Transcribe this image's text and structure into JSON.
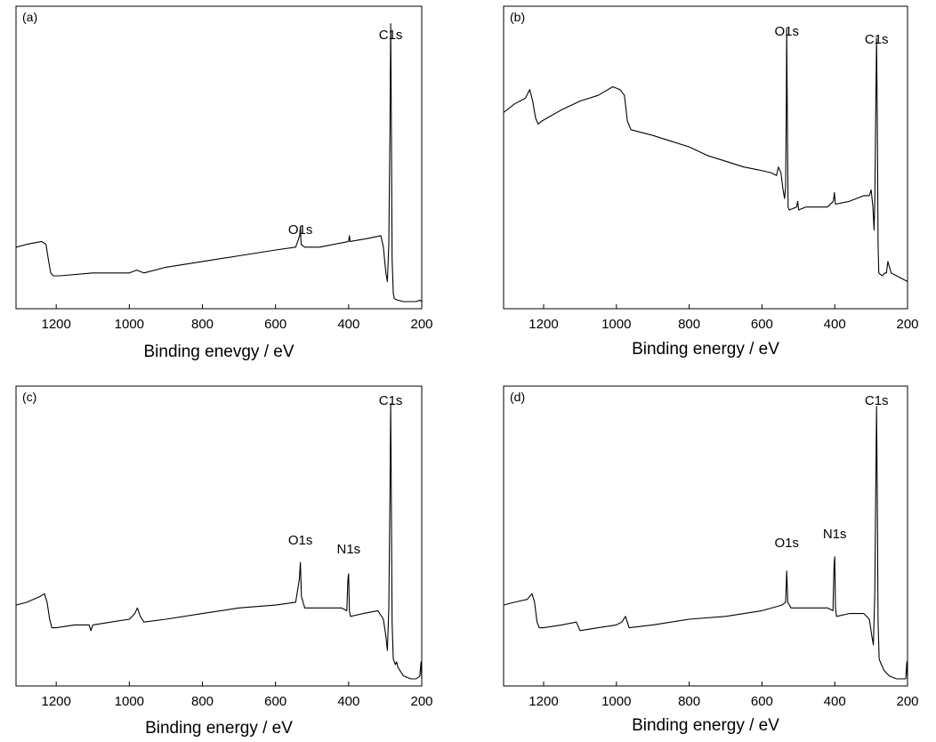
{
  "chart_data": [
    {
      "type": "line",
      "panel_label": "(a)",
      "xlabel": "Binding enevgy / eV",
      "ylabel": "",
      "xlim": [
        1310,
        200
      ],
      "x_reversed": true,
      "y_ticks_shown": false,
      "xticks": [
        1200,
        1000,
        800,
        600,
        400,
        200
      ],
      "annotations": [
        {
          "text": "C1s",
          "x": 285
        },
        {
          "text": "O1s",
          "x": 532
        }
      ],
      "series": [
        {
          "x": [
            1310,
            1280,
            1240,
            1228,
            1222,
            1215,
            1208,
            1190,
            1100,
            1000,
            980,
            960,
            900,
            800,
            700,
            600,
            545,
            534,
            532,
            530,
            520,
            480,
            400,
            398,
            396,
            350,
            312,
            305,
            298,
            294,
            290,
            287,
            285,
            283,
            281,
            278,
            275,
            265,
            250,
            230,
            215,
            205,
            200
          ],
          "y": [
            0.19,
            0.2,
            0.21,
            0.2,
            0.15,
            0.1,
            0.09,
            0.09,
            0.1,
            0.1,
            0.11,
            0.1,
            0.12,
            0.14,
            0.16,
            0.18,
            0.19,
            0.23,
            0.26,
            0.2,
            0.19,
            0.19,
            0.21,
            0.23,
            0.21,
            0.22,
            0.23,
            0.19,
            0.1,
            0.07,
            0.2,
            0.6,
            0.97,
            0.6,
            0.15,
            0.03,
            0.01,
            0.005,
            0.0,
            0.0,
            0.0,
            0.005,
            0.0
          ]
        }
      ]
    },
    {
      "type": "line",
      "panel_label": "(b)",
      "xlabel": "Binding energy / eV",
      "ylabel": "",
      "xlim": [
        1310,
        200
      ],
      "x_reversed": true,
      "y_ticks_shown": false,
      "xticks": [
        1200,
        1000,
        800,
        600,
        400,
        200
      ],
      "annotations": [
        {
          "text": "O1s",
          "x": 532
        },
        {
          "text": "C1s",
          "x": 285
        }
      ],
      "series": [
        {
          "x": [
            1310,
            1280,
            1250,
            1238,
            1230,
            1222,
            1215,
            1205,
            1150,
            1100,
            1050,
            1010,
            990,
            978,
            970,
            960,
            900,
            850,
            800,
            750,
            700,
            650,
            610,
            575,
            560,
            555,
            548,
            542,
            538,
            535,
            533,
            532,
            530,
            528,
            525,
            505,
            502,
            499,
            480,
            420,
            404,
            401,
            398,
            360,
            320,
            305,
            300,
            295,
            292,
            290,
            287,
            285,
            283,
            281,
            279,
            270,
            262,
            258,
            254,
            245,
            230,
            215,
            200
          ],
          "y": [
            0.66,
            0.69,
            0.71,
            0.74,
            0.7,
            0.64,
            0.62,
            0.63,
            0.67,
            0.7,
            0.72,
            0.75,
            0.74,
            0.72,
            0.63,
            0.6,
            0.58,
            0.56,
            0.54,
            0.51,
            0.49,
            0.47,
            0.46,
            0.45,
            0.44,
            0.47,
            0.45,
            0.39,
            0.36,
            0.4,
            0.7,
            0.95,
            0.6,
            0.33,
            0.32,
            0.33,
            0.35,
            0.32,
            0.33,
            0.33,
            0.35,
            0.38,
            0.34,
            0.35,
            0.37,
            0.37,
            0.39,
            0.33,
            0.25,
            0.35,
            0.7,
            0.92,
            0.6,
            0.2,
            0.1,
            0.09,
            0.1,
            0.1,
            0.14,
            0.1,
            0.09,
            0.08,
            0.07
          ]
        }
      ]
    },
    {
      "type": "line",
      "panel_label": "(c)",
      "xlabel": "Binding energy / eV",
      "ylabel": "",
      "xlim": [
        1310,
        200
      ],
      "x_reversed": true,
      "y_ticks_shown": false,
      "xticks": [
        1200,
        1000,
        800,
        600,
        400,
        200
      ],
      "annotations": [
        {
          "text": "C1s",
          "x": 285
        },
        {
          "text": "O1s",
          "x": 532
        },
        {
          "text": "N1s",
          "x": 400
        }
      ],
      "series": [
        {
          "x": [
            1310,
            1280,
            1245,
            1232,
            1225,
            1218,
            1212,
            1200,
            1150,
            1110,
            1105,
            1100,
            1050,
            1000,
            985,
            978,
            970,
            960,
            900,
            800,
            700,
            600,
            545,
            535,
            532,
            529,
            520,
            480,
            420,
            405,
            402,
            400,
            398,
            395,
            360,
            320,
            305,
            298,
            294,
            290,
            287,
            285,
            283,
            281,
            278,
            272,
            269,
            265,
            250,
            230,
            215,
            205,
            202,
            200
          ],
          "y": [
            0.26,
            0.27,
            0.29,
            0.3,
            0.27,
            0.21,
            0.18,
            0.18,
            0.19,
            0.19,
            0.17,
            0.19,
            0.2,
            0.21,
            0.23,
            0.25,
            0.22,
            0.2,
            0.21,
            0.23,
            0.25,
            0.26,
            0.27,
            0.35,
            0.41,
            0.29,
            0.25,
            0.25,
            0.25,
            0.24,
            0.35,
            0.37,
            0.24,
            0.22,
            0.23,
            0.24,
            0.21,
            0.15,
            0.1,
            0.25,
            0.65,
            0.97,
            0.6,
            0.2,
            0.07,
            0.05,
            0.06,
            0.04,
            0.01,
            0.0,
            0.0,
            0.01,
            0.06,
            0.0
          ]
        }
      ]
    },
    {
      "type": "line",
      "panel_label": "(d)",
      "xlabel": "Binding energy / eV",
      "ylabel": "",
      "xlim": [
        1310,
        200
      ],
      "x_reversed": true,
      "y_ticks_shown": false,
      "xticks": [
        1200,
        1000,
        800,
        600,
        400,
        200
      ],
      "annotations": [
        {
          "text": "C1s",
          "x": 285
        },
        {
          "text": "O1s",
          "x": 532
        },
        {
          "text": "N1s",
          "x": 400
        }
      ],
      "series": [
        {
          "x": [
            1310,
            1280,
            1245,
            1232,
            1225,
            1218,
            1212,
            1200,
            1150,
            1110,
            1100,
            1050,
            1000,
            985,
            975,
            965,
            900,
            800,
            700,
            600,
            545,
            535,
            532,
            529,
            520,
            480,
            420,
            405,
            402,
            400,
            398,
            395,
            360,
            320,
            305,
            298,
            294,
            290,
            287,
            285,
            283,
            281,
            278,
            272,
            268,
            265,
            250,
            230,
            215,
            205,
            202,
            200
          ],
          "y": [
            0.26,
            0.27,
            0.28,
            0.3,
            0.27,
            0.2,
            0.18,
            0.18,
            0.19,
            0.2,
            0.17,
            0.18,
            0.19,
            0.2,
            0.22,
            0.18,
            0.19,
            0.21,
            0.22,
            0.24,
            0.26,
            0.27,
            0.38,
            0.27,
            0.25,
            0.25,
            0.25,
            0.24,
            0.4,
            0.43,
            0.25,
            0.22,
            0.23,
            0.23,
            0.21,
            0.15,
            0.12,
            0.3,
            0.7,
            0.96,
            0.6,
            0.2,
            0.07,
            0.05,
            0.04,
            0.03,
            0.01,
            0.0,
            0.0,
            0.0,
            0.06,
            0.0
          ]
        }
      ]
    }
  ]
}
